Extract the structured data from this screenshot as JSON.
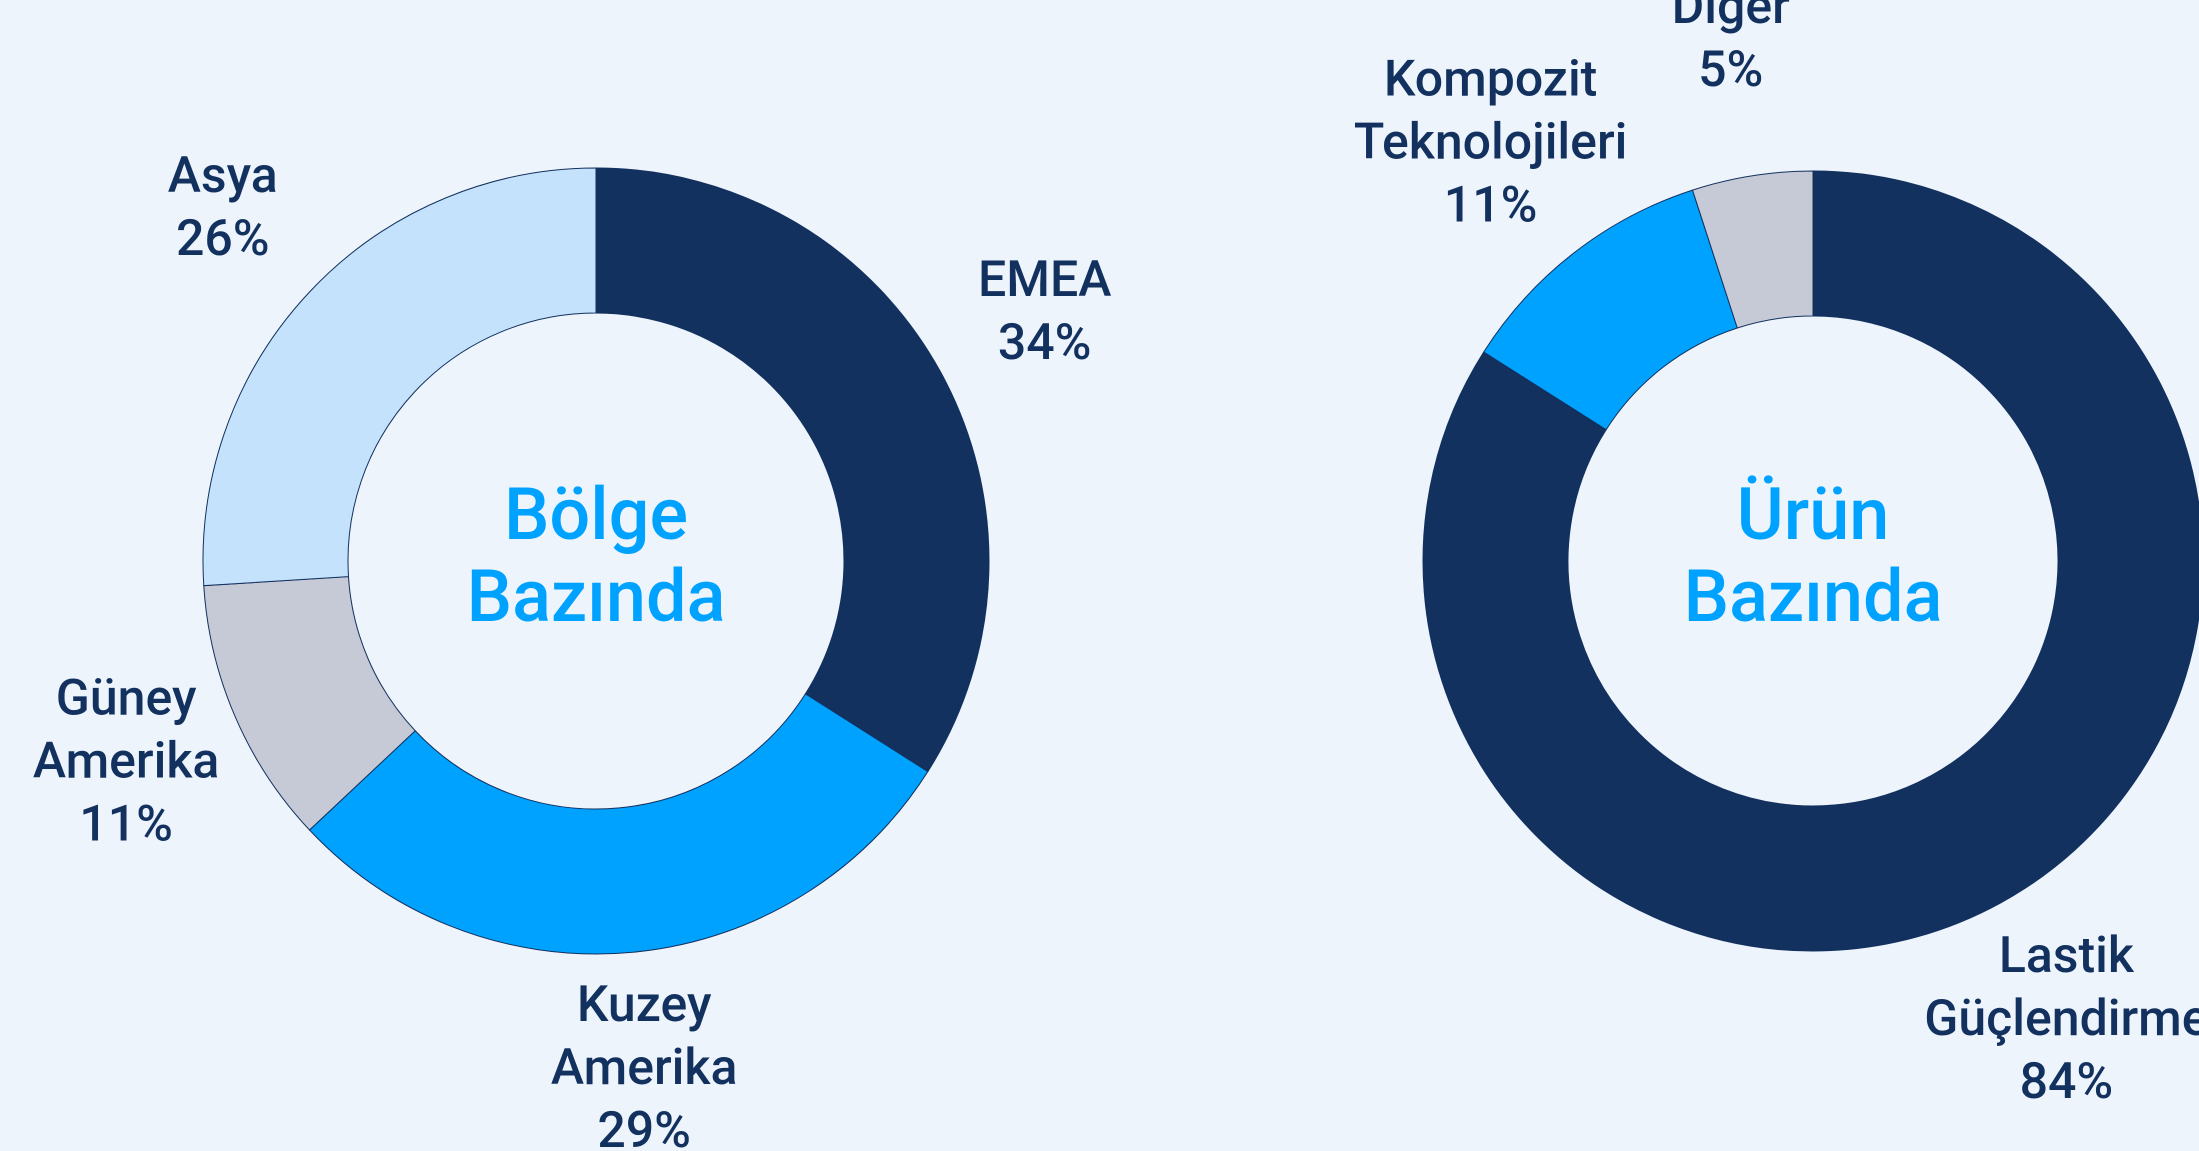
{
  "chart_data": [
    {
      "type": "donut",
      "center_label": "Bölge Bazında",
      "categories": [
        "EMEA",
        "Kuzey Amerika",
        "Güney Amerika",
        "Asya"
      ],
      "values": [
        34,
        29,
        11,
        26
      ],
      "value_labels": [
        "34%",
        "29%",
        "11%",
        "26%"
      ],
      "colors": [
        "#13315f",
        "#00a2ff",
        "#c5cad6",
        "#c5e2fc"
      ]
    },
    {
      "type": "donut",
      "center_label": "Ürün Bazında",
      "categories": [
        "Lastik Güçlendirme",
        "Kompozit Teknolojileri",
        "Diğer"
      ],
      "values": [
        84,
        11,
        5
      ],
      "value_labels": [
        "84%",
        "11%",
        "5%"
      ],
      "colors": [
        "#13315f",
        "#00a2ff",
        "#c5cad6"
      ]
    }
  ]
}
